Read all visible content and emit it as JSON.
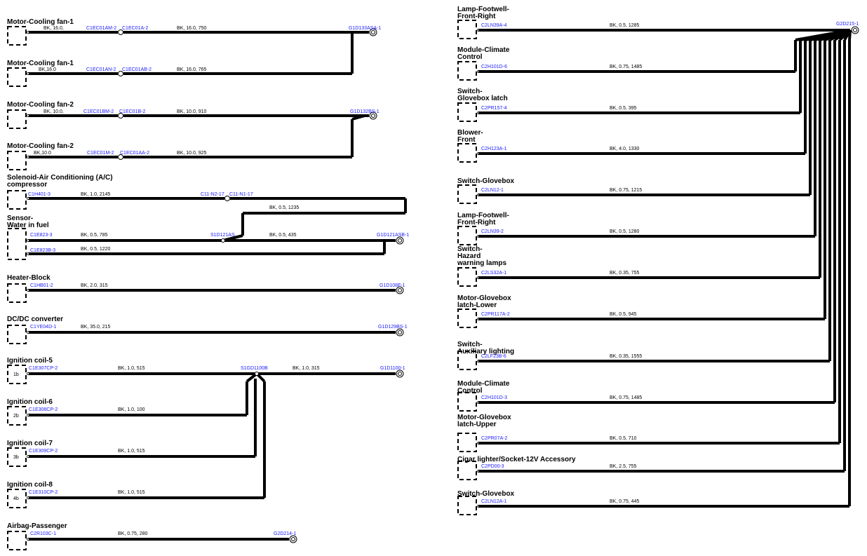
{
  "left_circuits": [
    {
      "title": [
        "Motor-Cooling fan-1"
      ],
      "specs": [
        "BK, 16.0,",
        "BK, 16.0, 750"
      ],
      "connectors": [
        "C1EC01AM-2",
        "C1EC01A-2",
        "G1D133ASA-1"
      ]
    },
    {
      "title": [
        "Motor-Cooling fan-1"
      ],
      "specs": [
        "BK,16.0",
        "BK, 16.0, 765"
      ],
      "connectors": [
        "C1EC01AN-2",
        "C1EC01AB-2"
      ]
    },
    {
      "title": [
        "Motor-Cooling fan-2"
      ],
      "specs": [
        "BK, 10.0,",
        "BK, 10.0, 910"
      ],
      "connectors": [
        "C1EC01BM-2",
        "C1EC01B-2",
        "G1D132BS-1"
      ]
    },
    {
      "title": [
        "Motor-Cooling fan-2"
      ],
      "specs": [
        "BK,10.0",
        "BK, 10.0, 925"
      ],
      "connectors": [
        "C1EC01M-2",
        "C1EC01AA-2"
      ]
    },
    {
      "title": [
        "Solenoid-Air Conditioning (A/C)",
        "compressor"
      ],
      "specs": [
        "BK, 1.0, 2145",
        "BK, 0.5, 1235"
      ],
      "connectors": [
        "C1H401-3",
        "C11-N2-17",
        "C11-N1-17"
      ]
    },
    {
      "title": [
        "Sensor-",
        "Water in fuel"
      ],
      "specs": [
        "BK, 0.5, 785",
        "BK, 0.5, 435",
        "BK, 0.5, 1220"
      ],
      "connectors": [
        "C1E823-3",
        "S1D121AS",
        "G1D121ASB-1",
        "C1E823B-3"
      ]
    },
    {
      "title": [
        "Heater-Block"
      ],
      "specs": [
        "BK, 2.0, 315"
      ],
      "connectors": [
        "C1HB01-2",
        "G1D108F-1"
      ]
    },
    {
      "title": [
        "DC/DC converter"
      ],
      "specs": [
        "BK, 35.0, 215"
      ],
      "connectors": [
        "C1YE04D-1",
        "G1D129BS-1"
      ]
    },
    {
      "title": [
        "Ignition coil-5"
      ],
      "specs": [
        "BK, 1.0, 515",
        "BK, 1.0, 315"
      ],
      "connectors": [
        "C1E307CP-2",
        "S1GD1100B",
        "G1D1100-1"
      ],
      "pin": "1b"
    },
    {
      "title": [
        "Ignition coil-6"
      ],
      "specs": [
        "BK, 1.0, 100"
      ],
      "connectors": [
        "C1E308CP-2"
      ],
      "pin": "2b"
    },
    {
      "title": [
        "Ignition coil-7"
      ],
      "specs": [
        "BK, 1.0, 515"
      ],
      "connectors": [
        "C1E309CP-2"
      ],
      "pin": "3b"
    },
    {
      "title": [
        "Ignition coil-8"
      ],
      "specs": [
        "BK, 1.0, 515"
      ],
      "connectors": [
        "C1E310CP-2"
      ],
      "pin": "4b"
    },
    {
      "title": [
        "Airbag-Passenger"
      ],
      "specs": [
        "BK, 0.75, 280"
      ],
      "connectors": [
        "C2R103C-1",
        "G2D214-1"
      ]
    }
  ],
  "right_ground": "G2D215-1",
  "right_circuits": [
    {
      "title": [
        "Lamp-Footwell-",
        "Front-Right"
      ],
      "connector": "C2LN39A-4",
      "spec": "BK, 0.5, 1285"
    },
    {
      "title": [
        "Module-Climate",
        "Control"
      ],
      "connector": "C2H101D-6",
      "spec": "BK, 0.75, 1485"
    },
    {
      "title": [
        "Switch-",
        "Glovebox latch"
      ],
      "connector": "C2PR157-4",
      "spec": "BK, 0.5, 395"
    },
    {
      "title": [
        "Blower-",
        "Front"
      ],
      "connector": "C2H123A-1",
      "spec": "BK, 4.0, 1330"
    },
    {
      "title": [
        "Switch-Glovebox"
      ],
      "connector": "C2LN12-1",
      "spec": "BK, 0.75, 1215"
    },
    {
      "title": [
        "Lamp-Footwell-",
        "Front-Right"
      ],
      "connector": "C2LN39-2",
      "spec": "BK, 0.5, 1280"
    },
    {
      "title": [
        "Switch-",
        "Hazard",
        "warning lamps"
      ],
      "connector": "C2LS32A-1",
      "spec": "BK, 0.35, 755"
    },
    {
      "title": [
        "Motor-Glovebox",
        "latch-Lower"
      ],
      "connector": "C2PR117A-2",
      "spec": "BK, 0.5, 945"
    },
    {
      "title": [
        "Switch-",
        "Auxiliary lighting"
      ],
      "connector": "C2LF23B-6",
      "spec": "BK, 0.35, 1555"
    },
    {
      "title": [
        "Module-Climate",
        "Control"
      ],
      "connector": "C2H101D-3",
      "spec": "BK, 0.75, 1485"
    },
    {
      "title": [
        "Motor-Glovebox",
        "latch-Upper"
      ],
      "connector": "C2PR07A-2",
      "spec": "BK, 0.5, 710"
    },
    {
      "title": [
        "Cigar lighter/Socket-12V Accessory"
      ],
      "connector": "C2PD00-3",
      "spec": "BK, 2.5, 755"
    },
    {
      "title": [
        "Switch-Glovebox"
      ],
      "connector": "C2LN12A-1",
      "spec": "BK, 0.75, 445"
    }
  ]
}
